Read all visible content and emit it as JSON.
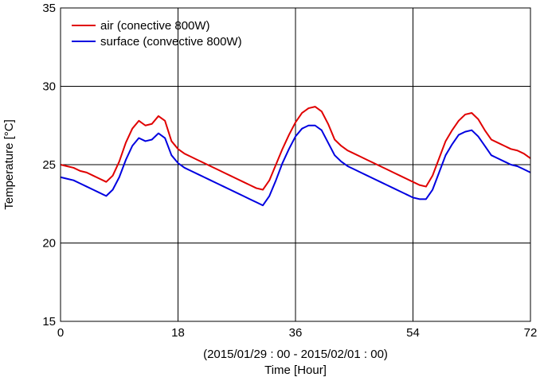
{
  "chart_data": {
    "type": "line",
    "xlabel_line1": "(2015/01/29 : 00 - 2015/02/01 : 00)",
    "xlabel_line2": "Time  [Hour]",
    "ylabel": "Temperature [°C]",
    "xlim": [
      0,
      72
    ],
    "ylim": [
      15,
      35
    ],
    "x_ticks": [
      0,
      18,
      36,
      54,
      72
    ],
    "y_ticks": [
      15,
      20,
      25,
      30,
      35
    ],
    "grid": true,
    "legend_position": "top-left",
    "series": [
      {
        "name": "air (conective 800W)",
        "color": "#e00000",
        "points": [
          [
            0,
            25.0
          ],
          [
            1,
            24.9
          ],
          [
            2,
            24.8
          ],
          [
            3,
            24.6
          ],
          [
            4,
            24.5
          ],
          [
            5,
            24.3
          ],
          [
            6,
            24.1
          ],
          [
            7,
            23.9
          ],
          [
            8,
            24.3
          ],
          [
            9,
            25.2
          ],
          [
            10,
            26.4
          ],
          [
            11,
            27.3
          ],
          [
            12,
            27.8
          ],
          [
            13,
            27.5
          ],
          [
            14,
            27.6
          ],
          [
            15,
            28.1
          ],
          [
            16,
            27.8
          ],
          [
            17,
            26.5
          ],
          [
            18,
            26.0
          ],
          [
            19,
            25.7
          ],
          [
            20,
            25.5
          ],
          [
            21,
            25.3
          ],
          [
            22,
            25.1
          ],
          [
            23,
            24.9
          ],
          [
            24,
            24.7
          ],
          [
            25,
            24.5
          ],
          [
            26,
            24.3
          ],
          [
            27,
            24.1
          ],
          [
            28,
            23.9
          ],
          [
            29,
            23.7
          ],
          [
            30,
            23.5
          ],
          [
            31,
            23.4
          ],
          [
            32,
            24.0
          ],
          [
            33,
            25.0
          ],
          [
            34,
            26.0
          ],
          [
            35,
            26.9
          ],
          [
            36,
            27.7
          ],
          [
            37,
            28.3
          ],
          [
            38,
            28.6
          ],
          [
            39,
            28.7
          ],
          [
            40,
            28.4
          ],
          [
            41,
            27.6
          ],
          [
            42,
            26.6
          ],
          [
            43,
            26.2
          ],
          [
            44,
            25.9
          ],
          [
            45,
            25.7
          ],
          [
            46,
            25.5
          ],
          [
            47,
            25.3
          ],
          [
            48,
            25.1
          ],
          [
            49,
            24.9
          ],
          [
            50,
            24.7
          ],
          [
            51,
            24.5
          ],
          [
            52,
            24.3
          ],
          [
            53,
            24.1
          ],
          [
            54,
            23.9
          ],
          [
            55,
            23.7
          ],
          [
            56,
            23.6
          ],
          [
            57,
            24.3
          ],
          [
            58,
            25.4
          ],
          [
            59,
            26.5
          ],
          [
            60,
            27.2
          ],
          [
            61,
            27.8
          ],
          [
            62,
            28.2
          ],
          [
            63,
            28.3
          ],
          [
            64,
            27.9
          ],
          [
            65,
            27.2
          ],
          [
            66,
            26.6
          ],
          [
            67,
            26.4
          ],
          [
            68,
            26.2
          ],
          [
            69,
            26.0
          ],
          [
            70,
            25.9
          ],
          [
            71,
            25.7
          ],
          [
            72,
            25.4
          ]
        ]
      },
      {
        "name": "surface (convective 800W)",
        "color": "#0000e0",
        "points": [
          [
            0,
            24.2
          ],
          [
            1,
            24.1
          ],
          [
            2,
            24.0
          ],
          [
            3,
            23.8
          ],
          [
            4,
            23.6
          ],
          [
            5,
            23.4
          ],
          [
            6,
            23.2
          ],
          [
            7,
            23.0
          ],
          [
            8,
            23.4
          ],
          [
            9,
            24.2
          ],
          [
            10,
            25.3
          ],
          [
            11,
            26.2
          ],
          [
            12,
            26.7
          ],
          [
            13,
            26.5
          ],
          [
            14,
            26.6
          ],
          [
            15,
            27.0
          ],
          [
            16,
            26.7
          ],
          [
            17,
            25.6
          ],
          [
            18,
            25.1
          ],
          [
            19,
            24.8
          ],
          [
            20,
            24.6
          ],
          [
            21,
            24.4
          ],
          [
            22,
            24.2
          ],
          [
            23,
            24.0
          ],
          [
            24,
            23.8
          ],
          [
            25,
            23.6
          ],
          [
            26,
            23.4
          ],
          [
            27,
            23.2
          ],
          [
            28,
            23.0
          ],
          [
            29,
            22.8
          ],
          [
            30,
            22.6
          ],
          [
            31,
            22.4
          ],
          [
            32,
            23.0
          ],
          [
            33,
            24.0
          ],
          [
            34,
            25.1
          ],
          [
            35,
            26.0
          ],
          [
            36,
            26.8
          ],
          [
            37,
            27.3
          ],
          [
            38,
            27.5
          ],
          [
            39,
            27.5
          ],
          [
            40,
            27.2
          ],
          [
            41,
            26.4
          ],
          [
            42,
            25.6
          ],
          [
            43,
            25.2
          ],
          [
            44,
            24.9
          ],
          [
            45,
            24.7
          ],
          [
            46,
            24.5
          ],
          [
            47,
            24.3
          ],
          [
            48,
            24.1
          ],
          [
            49,
            23.9
          ],
          [
            50,
            23.7
          ],
          [
            51,
            23.5
          ],
          [
            52,
            23.3
          ],
          [
            53,
            23.1
          ],
          [
            54,
            22.9
          ],
          [
            55,
            22.8
          ],
          [
            56,
            22.8
          ],
          [
            57,
            23.4
          ],
          [
            58,
            24.5
          ],
          [
            59,
            25.6
          ],
          [
            60,
            26.3
          ],
          [
            61,
            26.9
          ],
          [
            62,
            27.1
          ],
          [
            63,
            27.2
          ],
          [
            64,
            26.8
          ],
          [
            65,
            26.2
          ],
          [
            66,
            25.6
          ],
          [
            67,
            25.4
          ],
          [
            68,
            25.2
          ],
          [
            69,
            25.0
          ],
          [
            70,
            24.9
          ],
          [
            71,
            24.7
          ],
          [
            72,
            24.5
          ]
        ]
      }
    ]
  }
}
